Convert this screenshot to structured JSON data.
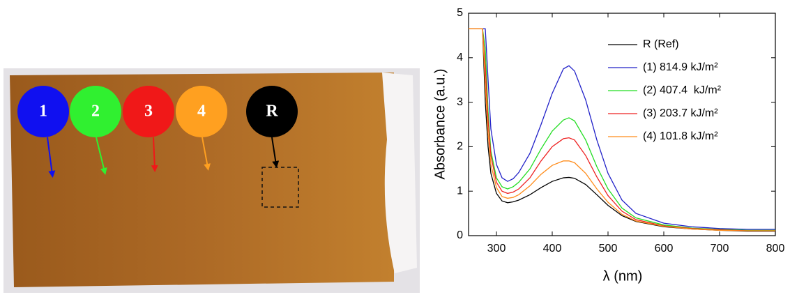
{
  "photo": {
    "labels": [
      "1",
      "2",
      "3",
      "4",
      "R"
    ]
  },
  "chart_data": {
    "type": "line",
    "x_label": "λ (nm)",
    "y_label": "Absorbance (a.u.)",
    "x": [
      250,
      270,
      275,
      280,
      285,
      290,
      300,
      310,
      320,
      330,
      340,
      360,
      380,
      400,
      420,
      430,
      440,
      460,
      480,
      500,
      525,
      550,
      600,
      650,
      700,
      750,
      800
    ],
    "series": [
      {
        "name": "R (Ref)",
        "color": "#000000",
        "values": [
          4.65,
          4.65,
          4.65,
          3.0,
          2.0,
          1.4,
          0.95,
          0.78,
          0.74,
          0.76,
          0.8,
          0.92,
          1.08,
          1.22,
          1.3,
          1.31,
          1.29,
          1.15,
          0.92,
          0.68,
          0.45,
          0.32,
          0.2,
          0.15,
          0.12,
          0.1,
          0.1
        ]
      },
      {
        "name": "(1) 814.9 kJ/m²",
        "color": "#2020c8",
        "values": [
          4.65,
          4.65,
          4.65,
          4.65,
          3.5,
          2.4,
          1.6,
          1.3,
          1.22,
          1.28,
          1.42,
          1.85,
          2.5,
          3.2,
          3.75,
          3.82,
          3.7,
          3.05,
          2.15,
          1.4,
          0.8,
          0.5,
          0.28,
          0.2,
          0.16,
          0.14,
          0.14
        ]
      },
      {
        "name": "(2) 407.4  kJ/m²",
        "color": "#22dd22",
        "values": [
          4.65,
          4.65,
          4.65,
          4.2,
          2.8,
          1.9,
          1.3,
          1.1,
          1.05,
          1.1,
          1.2,
          1.5,
          1.95,
          2.35,
          2.6,
          2.65,
          2.58,
          2.15,
          1.55,
          1.05,
          0.62,
          0.4,
          0.24,
          0.17,
          0.14,
          0.12,
          0.12
        ]
      },
      {
        "name": "(3) 203.7 kJ/m²",
        "color": "#ee2222",
        "values": [
          4.65,
          4.65,
          4.65,
          3.8,
          2.6,
          1.8,
          1.2,
          1.0,
          0.95,
          0.98,
          1.05,
          1.3,
          1.68,
          2.0,
          2.18,
          2.2,
          2.15,
          1.8,
          1.32,
          0.9,
          0.55,
          0.36,
          0.22,
          0.16,
          0.13,
          0.11,
          0.11
        ]
      },
      {
        "name": "(4) 101.8 kJ/m²",
        "color": "#ff8c1a",
        "values": [
          4.65,
          4.65,
          4.65,
          3.4,
          2.3,
          1.6,
          1.08,
          0.88,
          0.84,
          0.86,
          0.92,
          1.12,
          1.38,
          1.58,
          1.68,
          1.68,
          1.64,
          1.4,
          1.05,
          0.75,
          0.48,
          0.33,
          0.21,
          0.15,
          0.12,
          0.11,
          0.11
        ]
      }
    ],
    "xlim": [
      250,
      800
    ],
    "ylim": [
      0,
      5
    ],
    "xticks": [
      300,
      400,
      500,
      600,
      700,
      800
    ],
    "yticks": [
      0,
      1,
      2,
      3,
      4,
      5
    ],
    "legend": "upper right"
  }
}
